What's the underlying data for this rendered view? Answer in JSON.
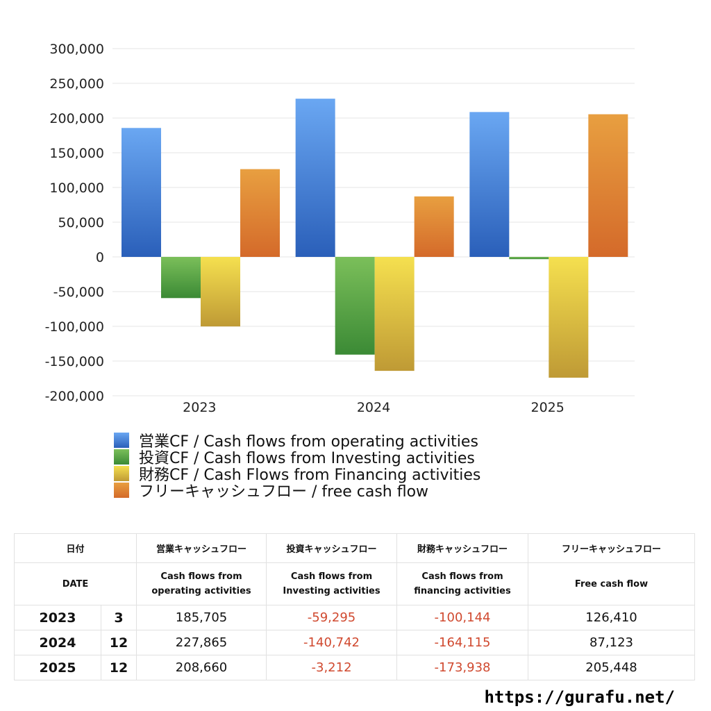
{
  "chart_data": {
    "type": "bar",
    "categories": [
      "2023",
      "2024",
      "2025"
    ],
    "series": [
      {
        "name": "営業CF / Cash flows from operating activities",
        "values": [
          185705,
          227865,
          208660
        ],
        "color_top": "#6aa7f2",
        "color_bottom": "#2a5fb9"
      },
      {
        "name": "投資CF / Cash flows from Investing activities",
        "values": [
          -59295,
          -140742,
          -3212
        ],
        "color_top": "#7bbf5a",
        "color_bottom": "#3b8a35"
      },
      {
        "name": "財務CF / Cash Flows from Financing activities",
        "values": [
          -100144,
          -164115,
          -173938
        ],
        "color_top": "#f5e04f",
        "color_bottom": "#bf9a35"
      },
      {
        "name": "フリーキャッシュフロー / free cash flow",
        "values": [
          126410,
          87123,
          205448
        ],
        "color_top": "#e89f40",
        "color_bottom": "#d46a2a"
      }
    ],
    "ylim": [
      -200000,
      300000
    ],
    "yticks": [
      "300,000",
      "250,000",
      "200,000",
      "150,000",
      "100,000",
      "50,000",
      "0",
      "-50,000",
      "-100,000",
      "-150,000",
      "-200,000"
    ],
    "grid": true,
    "legend": "bottom"
  },
  "table": {
    "header_row1": {
      "date": "日付",
      "operating": "営業キャッシュフロー",
      "investing": "投資キャッシュフロー",
      "financing": "財務キャッシュフロー",
      "free": "フリーキャッシュフロー"
    },
    "header_row2": {
      "date": "DATE",
      "operating": "Cash flows from operating activities",
      "investing": "Cash flows from Investing activities",
      "financing": "Cash flows from financing activities",
      "free": "Free cash flow"
    },
    "rows": [
      {
        "year": "2023",
        "month": "3",
        "operating": "185,705",
        "investing": "-59,295",
        "financing": "-100,144",
        "free": "126,410"
      },
      {
        "year": "2024",
        "month": "12",
        "operating": "227,865",
        "investing": "-140,742",
        "financing": "-164,115",
        "free": "87,123"
      },
      {
        "year": "2025",
        "month": "12",
        "operating": "208,660",
        "investing": "-3,212",
        "financing": "-173,938",
        "free": "205,448"
      }
    ]
  },
  "footer": {
    "url": "https://gurafu.net/"
  }
}
